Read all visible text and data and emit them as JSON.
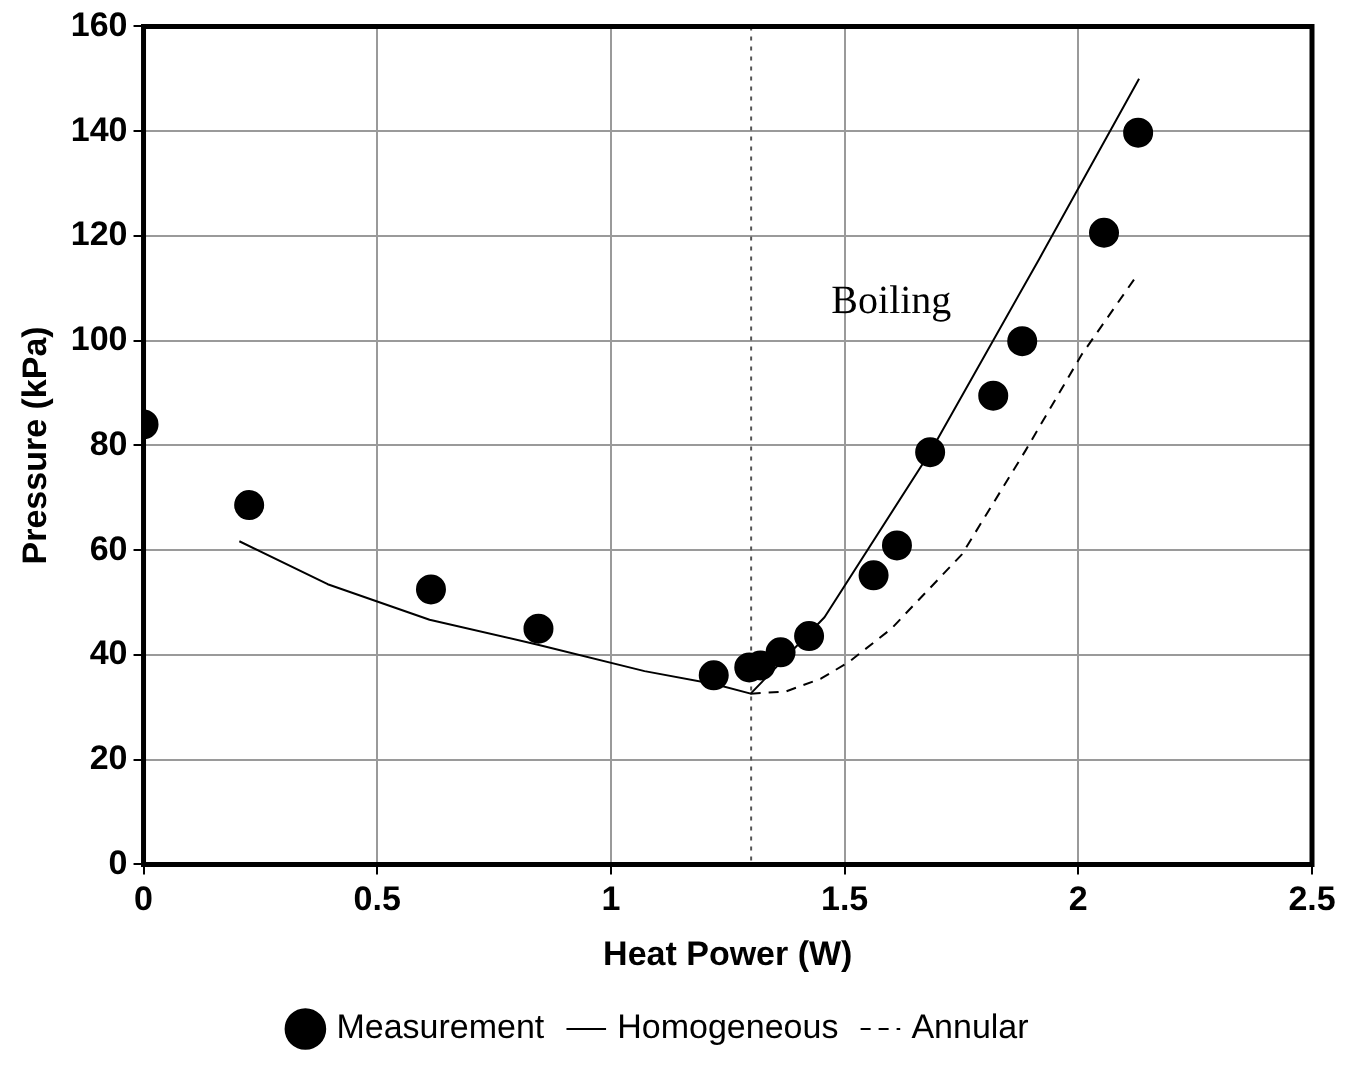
{
  "chart_data": {
    "type": "scatter",
    "xlabel": "Heat Power (W)",
    "ylabel": "Pressure (kPa)",
    "xlim": [
      0,
      2.5
    ],
    "xticks": [
      0,
      0.5,
      1,
      1.5,
      2,
      2.5
    ],
    "ylim": [
      0,
      160
    ],
    "yticks": [
      0,
      20,
      40,
      60,
      80,
      100,
      120,
      140,
      160
    ],
    "grid": true,
    "legend": "bottom",
    "series": [
      {
        "name": "Measurement",
        "marker": "circle",
        "color": "#000000",
        "x": [
          0,
          0.226,
          0.615,
          0.845,
          1.22,
          1.296,
          1.32,
          1.363,
          1.424,
          1.562,
          1.612,
          1.683,
          1.818,
          1.88,
          2.055,
          2.128
        ],
        "values": [
          84,
          68.6,
          52.5,
          45,
          36.1,
          37.6,
          38,
          40.5,
          43.6,
          55.2,
          60.9,
          78.7,
          89.5,
          99.9,
          120.6,
          139.7
        ]
      },
      {
        "name": "Homogeneous",
        "type": "line",
        "marker": "none",
        "line_style": "solid",
        "color": "#000000",
        "x": [
          0.205,
          0.394,
          0.612,
          0.846,
          1.072,
          1.223,
          1.299,
          1.457,
          1.683,
          1.917,
          2.13
        ],
        "values": [
          61.7,
          53.5,
          46.7,
          41.9,
          36.9,
          34.4,
          32.6,
          47.2,
          78.7,
          115.7,
          150
        ]
      },
      {
        "name": "Annular",
        "type": "line",
        "marker": "none",
        "line_style": "dashed",
        "color": "#000000",
        "x": [
          1.299,
          1.374,
          1.45,
          1.51,
          1.6,
          1.751,
          1.887,
          2.007,
          2.128
        ],
        "values": [
          32.6,
          33,
          35.5,
          38.7,
          45,
          59.2,
          79,
          97.3,
          112.8
        ]
      }
    ],
    "ref_lines": [
      {
        "axis": "x",
        "value": 1.3,
        "line_style": "dotted",
        "color": "#555555"
      }
    ],
    "annotations": [
      "Boiling"
    ]
  }
}
